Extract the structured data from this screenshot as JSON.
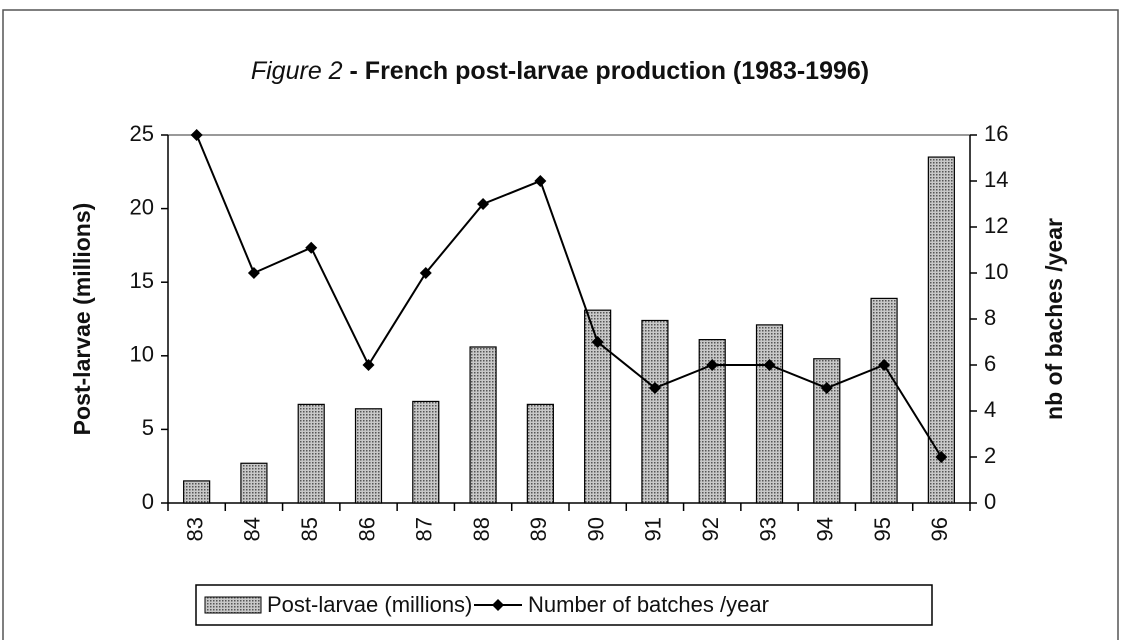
{
  "chart_data": {
    "type": "bar",
    "title": {
      "figure": "Figure 2",
      "text": "- French post-larvae production  (1983-1996)"
    },
    "ylabel": "Post-larvae (millions)",
    "y2label": "nb of baches /year",
    "categories": [
      "83",
      "84",
      "85",
      "86",
      "87",
      "88",
      "89",
      "90",
      "91",
      "92",
      "93",
      "94",
      "95",
      "96"
    ],
    "series": [
      {
        "name": "Post-larvae (millions)",
        "type": "bar",
        "color": "#9a9a9a",
        "values": [
          1.5,
          2.7,
          6.7,
          6.4,
          6.9,
          10.6,
          6.7,
          13.1,
          12.4,
          11.1,
          12.1,
          9.8,
          13.9,
          23.5
        ]
      },
      {
        "name": "Number of batches /year",
        "type": "line",
        "axis": "y2",
        "color": "#000000",
        "values": [
          16,
          10,
          11.1,
          6,
          10,
          13,
          14,
          7,
          5,
          6,
          6,
          5,
          6,
          2
        ]
      }
    ],
    "ylim": [
      0,
      25
    ],
    "yticks": [
      0,
      5,
      10,
      15,
      20,
      25
    ],
    "y2lim": [
      0,
      16
    ],
    "y2ticks": [
      0,
      2,
      4,
      6,
      8,
      10,
      12,
      14,
      16
    ],
    "grid": false,
    "legend": "bottom"
  }
}
